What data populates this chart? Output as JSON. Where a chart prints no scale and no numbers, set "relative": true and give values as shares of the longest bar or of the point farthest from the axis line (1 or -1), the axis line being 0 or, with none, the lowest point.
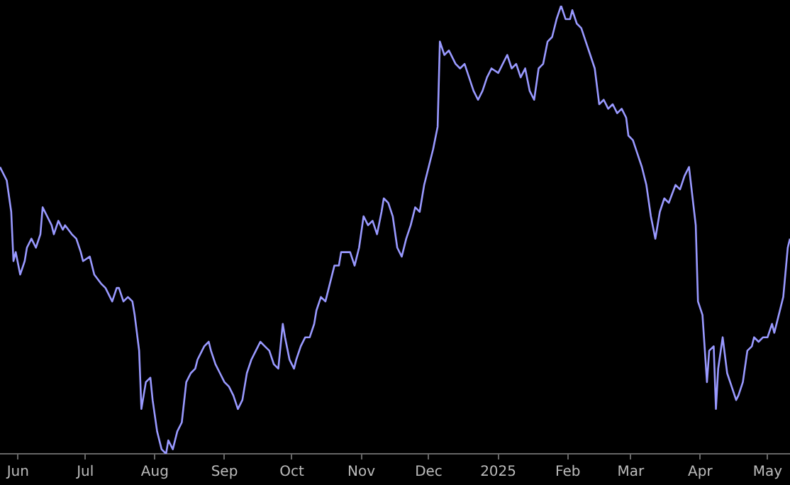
{
  "chart_data": {
    "type": "line",
    "relative": true,
    "grid": false,
    "legend": false,
    "marker": "none",
    "line_style": "solid",
    "x": [
      "2024-05-24",
      "2024-05-27",
      "2024-05-29",
      "2024-05-30",
      "2024-05-31",
      "2024-06-02",
      "2024-06-04",
      "2024-06-05",
      "2024-06-07",
      "2024-06-09",
      "2024-06-11",
      "2024-06-12",
      "2024-06-14",
      "2024-06-16",
      "2024-06-17",
      "2024-06-19",
      "2024-06-21",
      "2024-06-22",
      "2024-06-25",
      "2024-06-27",
      "2024-06-29",
      "2024-06-30",
      "2024-07-03",
      "2024-07-05",
      "2024-07-08",
      "2024-07-10",
      "2024-07-13",
      "2024-07-15",
      "2024-07-16",
      "2024-07-18",
      "2024-07-20",
      "2024-07-22",
      "2024-07-23",
      "2024-07-25",
      "2024-07-26",
      "2024-07-28",
      "2024-07-30",
      "2024-07-31",
      "2024-08-02",
      "2024-08-04",
      "2024-08-06",
      "2024-08-07",
      "2024-08-09",
      "2024-08-11",
      "2024-08-13",
      "2024-08-15",
      "2024-08-17",
      "2024-08-19",
      "2024-08-20",
      "2024-08-23",
      "2024-08-25",
      "2024-08-26",
      "2024-08-28",
      "2024-08-30",
      "2024-09-01",
      "2024-09-03",
      "2024-09-05",
      "2024-09-07",
      "2024-09-09",
      "2024-09-11",
      "2024-09-13",
      "2024-09-15",
      "2024-09-17",
      "2024-09-19",
      "2024-09-21",
      "2024-09-23",
      "2024-09-25",
      "2024-09-27",
      "2024-09-28",
      "2024-09-30",
      "2024-10-02",
      "2024-10-03",
      "2024-10-05",
      "2024-10-07",
      "2024-10-09",
      "2024-10-11",
      "2024-10-12",
      "2024-10-14",
      "2024-10-16",
      "2024-10-18",
      "2024-10-20",
      "2024-10-22",
      "2024-10-23",
      "2024-10-25",
      "2024-10-27",
      "2024-10-29",
      "2024-10-31",
      "2024-11-02",
      "2024-11-04",
      "2024-11-06",
      "2024-11-08",
      "2024-11-10",
      "2024-11-11",
      "2024-11-13",
      "2024-11-15",
      "2024-11-17",
      "2024-11-19",
      "2024-11-21",
      "2024-11-23",
      "2024-11-25",
      "2024-11-27",
      "2024-11-29",
      "2024-12-01",
      "2024-12-03",
      "2024-12-05",
      "2024-12-06",
      "2024-12-08",
      "2024-12-10",
      "2024-12-13",
      "2024-12-15",
      "2024-12-17",
      "2024-12-19",
      "2024-12-21",
      "2024-12-23",
      "2024-12-25",
      "2024-12-27",
      "2024-12-29",
      "2025-01-01",
      "2025-01-03",
      "2025-01-05",
      "2025-01-07",
      "2025-01-09",
      "2025-01-11",
      "2025-01-13",
      "2025-01-15",
      "2025-01-17",
      "2025-01-19",
      "2025-01-21",
      "2025-01-23",
      "2025-01-25",
      "2025-01-27",
      "2025-01-29",
      "2025-01-31",
      "2025-02-02",
      "2025-02-03",
      "2025-02-05",
      "2025-02-07",
      "2025-02-09",
      "2025-02-11",
      "2025-02-13",
      "2025-02-15",
      "2025-02-17",
      "2025-02-19",
      "2025-02-21",
      "2025-02-23",
      "2025-02-25",
      "2025-02-27",
      "2025-02-28",
      "2025-03-02",
      "2025-03-04",
      "2025-03-06",
      "2025-03-08",
      "2025-03-10",
      "2025-03-12",
      "2025-03-14",
      "2025-03-16",
      "2025-03-18",
      "2025-03-21",
      "2025-03-23",
      "2025-03-25",
      "2025-03-27",
      "2025-03-30",
      "2025-03-31",
      "2025-04-02",
      "2025-04-04",
      "2025-04-05",
      "2025-04-07",
      "2025-04-08",
      "2025-04-09",
      "2025-04-11",
      "2025-04-13",
      "2025-04-15",
      "2025-04-17",
      "2025-04-18",
      "2025-04-20",
      "2025-04-22",
      "2025-04-24",
      "2025-04-25",
      "2025-04-27",
      "2025-04-29",
      "2025-05-01",
      "2025-05-03",
      "2025-05-04",
      "2025-05-06",
      "2025-05-08",
      "2025-05-10",
      "2025-05-11"
    ],
    "series": [
      {
        "color": "#9999ff",
        "values": [
          0.64,
          0.61,
          0.54,
          0.43,
          0.45,
          0.4,
          0.43,
          0.46,
          0.48,
          0.46,
          0.49,
          0.55,
          0.53,
          0.51,
          0.49,
          0.52,
          0.5,
          0.51,
          0.49,
          0.48,
          0.45,
          0.43,
          0.44,
          0.4,
          0.38,
          0.37,
          0.34,
          0.37,
          0.37,
          0.34,
          0.35,
          0.34,
          0.31,
          0.23,
          0.1,
          0.16,
          0.17,
          0.12,
          0.05,
          0.01,
          0,
          0.03,
          0.01,
          0.05,
          0.07,
          0.16,
          0.18,
          0.19,
          0.21,
          0.24,
          0.25,
          0.23,
          0.2,
          0.18,
          0.16,
          0.15,
          0.13,
          0.1,
          0.12,
          0.18,
          0.21,
          0.23,
          0.25,
          0.24,
          0.23,
          0.2,
          0.19,
          0.29,
          0.26,
          0.21,
          0.19,
          0.21,
          0.24,
          0.26,
          0.26,
          0.29,
          0.32,
          0.35,
          0.34,
          0.38,
          0.42,
          0.42,
          0.45,
          0.45,
          0.45,
          0.42,
          0.46,
          0.53,
          0.51,
          0.52,
          0.49,
          0.54,
          0.57,
          0.56,
          0.53,
          0.46,
          0.44,
          0.48,
          0.51,
          0.55,
          0.54,
          0.6,
          0.64,
          0.68,
          0.73,
          0.92,
          0.89,
          0.9,
          0.87,
          0.86,
          0.87,
          0.84,
          0.81,
          0.79,
          0.81,
          0.84,
          0.86,
          0.85,
          0.87,
          0.89,
          0.86,
          0.87,
          0.84,
          0.86,
          0.81,
          0.79,
          0.86,
          0.87,
          0.92,
          0.93,
          0.97,
          1,
          0.97,
          0.97,
          0.99,
          0.96,
          0.95,
          0.92,
          0.89,
          0.86,
          0.78,
          0.79,
          0.77,
          0.78,
          0.76,
          0.77,
          0.75,
          0.71,
          0.7,
          0.67,
          0.64,
          0.6,
          0.53,
          0.48,
          0.54,
          0.57,
          0.56,
          0.6,
          0.59,
          0.62,
          0.64,
          0.51,
          0.34,
          0.31,
          0.16,
          0.23,
          0.24,
          0.1,
          0.19,
          0.26,
          0.18,
          0.15,
          0.12,
          0.13,
          0.16,
          0.23,
          0.24,
          0.26,
          0.25,
          0.26,
          0.26,
          0.29,
          0.27,
          0.31,
          0.35,
          0.46,
          0.48
        ]
      }
    ],
    "xlim": [
      "2024-05-24",
      "2025-05-11"
    ],
    "xticks": [
      {
        "value": "2024-06-01",
        "label": "Jun"
      },
      {
        "value": "2024-07-01",
        "label": "Jul"
      },
      {
        "value": "2024-08-01",
        "label": "Aug"
      },
      {
        "value": "2024-09-01",
        "label": "Sep"
      },
      {
        "value": "2024-10-01",
        "label": "Oct"
      },
      {
        "value": "2024-11-01",
        "label": "Nov"
      },
      {
        "value": "2024-12-01",
        "label": "Dec"
      },
      {
        "value": "2025-01-01",
        "label": "2025"
      },
      {
        "value": "2025-02-01",
        "label": "Feb"
      },
      {
        "value": "2025-03-01",
        "label": "Mar"
      },
      {
        "value": "2025-04-01",
        "label": "Apr"
      },
      {
        "value": "2025-05-01",
        "label": "May"
      }
    ]
  }
}
